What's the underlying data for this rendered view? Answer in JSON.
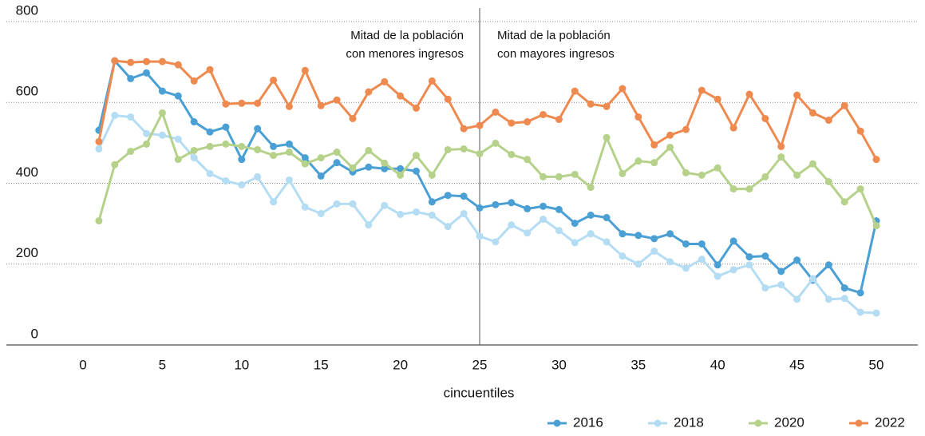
{
  "chart_data": {
    "type": "line",
    "xlabel": "cincuentiles",
    "x": [
      1,
      2,
      3,
      4,
      5,
      6,
      7,
      8,
      9,
      10,
      11,
      12,
      13,
      14,
      15,
      16,
      17,
      18,
      19,
      20,
      21,
      22,
      23,
      24,
      25,
      26,
      27,
      28,
      29,
      30,
      31,
      32,
      33,
      34,
      35,
      36,
      37,
      38,
      39,
      40,
      41,
      42,
      43,
      44,
      45,
      46,
      47,
      48,
      49,
      50
    ],
    "xlim": [
      0,
      50
    ],
    "xticks": [
      0,
      5,
      10,
      15,
      20,
      25,
      30,
      35,
      40,
      45,
      50
    ],
    "ylim": [
      0,
      800
    ],
    "yticks": [
      0,
      200,
      400,
      600,
      800
    ],
    "grid": true,
    "legend": "bottom-right",
    "vline": 25,
    "annotations": [
      {
        "lines": [
          "Mitad de la población",
          "con menores ingresos"
        ],
        "align": "right"
      },
      {
        "lines": [
          "Mitad de la población",
          "con mayores ingresos"
        ],
        "align": "left"
      }
    ],
    "series": [
      {
        "name": "2016",
        "color": "#4a9fd4",
        "values": [
          531,
          703,
          659,
          673,
          628,
          616,
          552,
          527,
          539,
          459,
          535,
          491,
          497,
          463,
          418,
          451,
          428,
          440,
          436,
          436,
          430,
          354,
          370,
          368,
          339,
          347,
          352,
          337,
          343,
          335,
          301,
          321,
          315,
          275,
          271,
          263,
          275,
          250,
          250,
          198,
          257,
          218,
          220,
          182,
          210,
          160,
          198,
          141,
          129,
          307
        ]
      },
      {
        "name": "2018",
        "color": "#b4dcf2",
        "values": [
          485,
          568,
          564,
          523,
          519,
          509,
          463,
          424,
          406,
          396,
          416,
          354,
          408,
          341,
          325,
          349,
          349,
          297,
          345,
          323,
          329,
          321,
          293,
          325,
          269,
          255,
          297,
          277,
          311,
          283,
          253,
          275,
          255,
          220,
          200,
          232,
          206,
          190,
          212,
          170,
          186,
          198,
          141,
          149,
          113,
          164,
          113,
          115,
          81,
          79
        ]
      },
      {
        "name": "2020",
        "color": "#b5d18a",
        "values": [
          307,
          446,
          479,
          497,
          574,
          459,
          481,
          491,
          497,
          491,
          483,
          469,
          477,
          448,
          463,
          477,
          438,
          481,
          450,
          420,
          469,
          420,
          483,
          485,
          473,
          499,
          471,
          459,
          416,
          416,
          422,
          390,
          513,
          424,
          455,
          451,
          489,
          426,
          420,
          438,
          386,
          386,
          416,
          465,
          420,
          448,
          404,
          354,
          386,
          295
        ]
      },
      {
        "name": "2022",
        "color": "#ee8a4f",
        "values": [
          503,
          703,
          699,
          701,
          701,
          693,
          653,
          681,
          596,
          598,
          598,
          655,
          590,
          679,
          592,
          606,
          560,
          626,
          651,
          616,
          586,
          653,
          608,
          535,
          543,
          576,
          549,
          552,
          570,
          558,
          628,
          596,
          590,
          634,
          564,
          495,
          519,
          533,
          630,
          608,
          537,
          620,
          560,
          491,
          618,
          574,
          556,
          592,
          529,
          459
        ]
      }
    ]
  }
}
